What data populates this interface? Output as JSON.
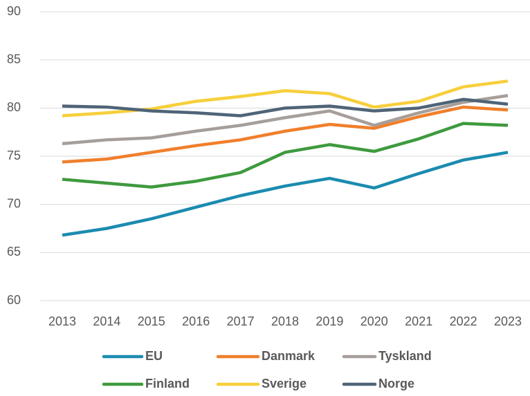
{
  "chart_data": {
    "type": "line",
    "x": [
      "2013",
      "2014",
      "2015",
      "2016",
      "2017",
      "2018",
      "2019",
      "2020",
      "2021",
      "2022",
      "2023"
    ],
    "series": [
      {
        "name": "EU",
        "color": "#1b8bb0",
        "values": [
          66.8,
          67.5,
          68.5,
          69.7,
          70.9,
          71.9,
          72.7,
          71.7,
          73.2,
          74.6,
          75.4
        ]
      },
      {
        "name": "Danmark",
        "color": "#f07f2b",
        "values": [
          74.4,
          74.7,
          75.4,
          76.1,
          76.7,
          77.6,
          78.3,
          77.9,
          79.1,
          80.1,
          79.8
        ]
      },
      {
        "name": "Tyskland",
        "color": "#a69e9a",
        "values": [
          76.3,
          76.7,
          76.9,
          77.6,
          78.2,
          79.0,
          79.7,
          78.2,
          79.5,
          80.6,
          81.3
        ]
      },
      {
        "name": "Finland",
        "color": "#3e9a3e",
        "values": [
          72.6,
          72.2,
          71.8,
          72.4,
          73.3,
          75.4,
          76.2,
          75.5,
          76.8,
          78.4,
          78.2
        ]
      },
      {
        "name": "Sverige",
        "color": "#f7cf3a",
        "values": [
          79.2,
          79.5,
          79.9,
          80.7,
          81.2,
          81.8,
          81.5,
          80.1,
          80.7,
          82.2,
          82.8
        ]
      },
      {
        "name": "Norge",
        "color": "#4f6477",
        "values": [
          80.2,
          80.1,
          79.7,
          79.5,
          79.2,
          80.0,
          80.2,
          79.7,
          80.0,
          80.9,
          80.4
        ]
      }
    ],
    "ylim": [
      60,
      90
    ],
    "yticks": [
      60,
      65,
      70,
      75,
      80,
      85,
      90
    ],
    "grid": true,
    "legend": "bottom"
  }
}
